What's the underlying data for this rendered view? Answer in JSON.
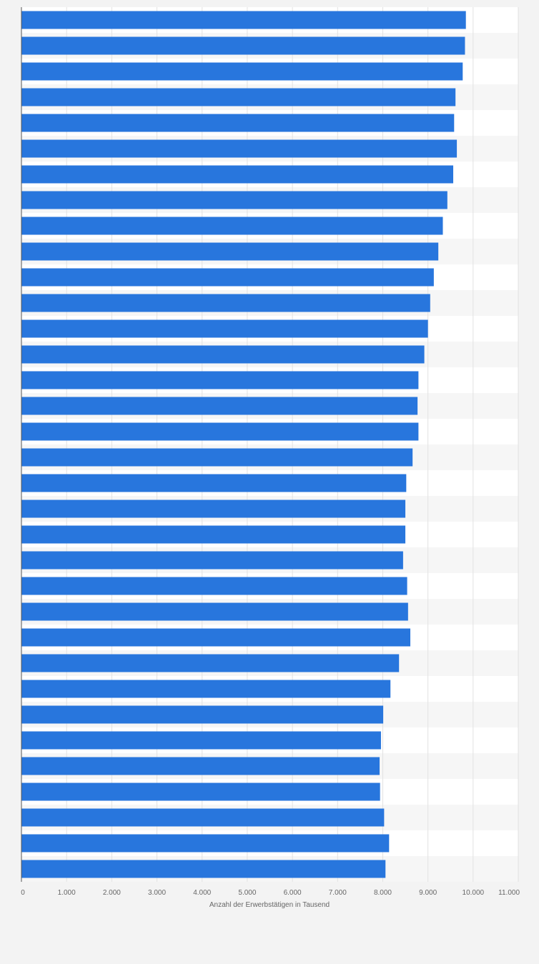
{
  "chart_data": {
    "type": "bar",
    "orientation": "horizontal",
    "xlabel": "Anzahl der Erwerbstätigen in Tausend",
    "xlim": [
      0,
      11000
    ],
    "xticks": [
      {
        "value": 0,
        "label": "0"
      },
      {
        "value": 1000,
        "label": "1.000"
      },
      {
        "value": 2000,
        "label": "2.000"
      },
      {
        "value": 3000,
        "label": "3.000"
      },
      {
        "value": 4000,
        "label": "4.000"
      },
      {
        "value": 5000,
        "label": "5.000"
      },
      {
        "value": 6000,
        "label": "6.000"
      },
      {
        "value": 7000,
        "label": "7.000"
      },
      {
        "value": 8000,
        "label": "8.000"
      },
      {
        "value": 9000,
        "label": "9.000"
      },
      {
        "value": 10000,
        "label": "10.000"
      },
      {
        "value": 11000,
        "label": "11.000"
      }
    ],
    "grid": true,
    "bar_color": "#2876dd",
    "values": [
      9840,
      9820,
      9770,
      9610,
      9580,
      9640,
      9560,
      9430,
      9330,
      9230,
      9130,
      9050,
      9000,
      8920,
      8790,
      8770,
      8790,
      8660,
      8520,
      8500,
      8500,
      8450,
      8540,
      8560,
      8610,
      8360,
      8170,
      8010,
      7960,
      7930,
      7940,
      8030,
      8140,
      8060
    ]
  }
}
